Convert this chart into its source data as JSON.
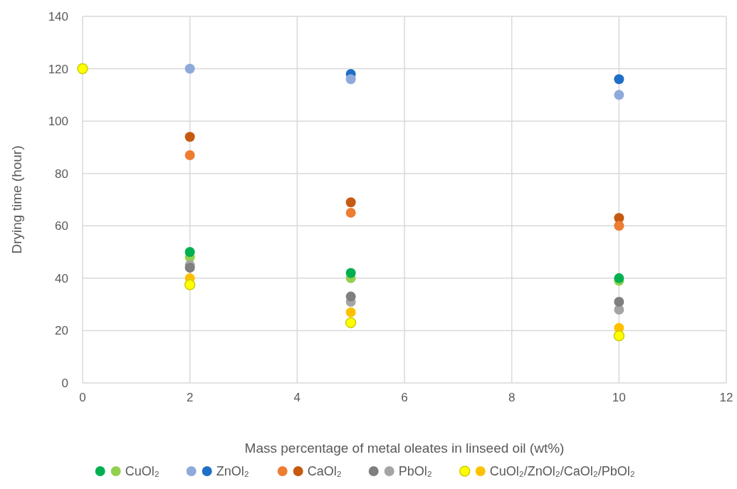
{
  "chart_data": {
    "type": "scatter",
    "xlabel": "Mass percentage of metal oleates in linseed oil (wt%)",
    "ylabel": "Drying time (hour)",
    "x": [
      0,
      2,
      5,
      10
    ],
    "xlim": [
      0,
      12
    ],
    "xticks": [
      0,
      2,
      4,
      6,
      8,
      10,
      12
    ],
    "ylim": [
      0,
      140
    ],
    "yticks": [
      0,
      20,
      40,
      60,
      80,
      100,
      120,
      140
    ],
    "grid": true,
    "legend": "bottom",
    "marker": "circle",
    "series": [
      {
        "color": "#00b050",
        "values": [
          null,
          50,
          42,
          40
        ]
      },
      {
        "name": "CuOl₂",
        "color": "#92d050",
        "values": [
          null,
          48,
          40,
          39
        ]
      },
      {
        "color": "#8eaadb",
        "values": [
          null,
          120,
          116,
          110
        ]
      },
      {
        "name": "ZnOl₂",
        "color": "#1f6fc6",
        "values": [
          null,
          null,
          118,
          116
        ]
      },
      {
        "color": "#ed7d31",
        "values": [
          null,
          87,
          65,
          60
        ]
      },
      {
        "name": "CaOl₂",
        "color": "#c55a11",
        "values": [
          null,
          94,
          69,
          63
        ]
      },
      {
        "color": "#7f7f7f",
        "values": [
          null,
          44,
          33,
          31
        ]
      },
      {
        "name": "PbOl₂",
        "color": "#a5a5a5",
        "values": [
          null,
          45,
          31,
          28
        ]
      },
      {
        "color": "#ffff00",
        "values": [
          120,
          37.5,
          23,
          18
        ]
      },
      {
        "name": "CuOl₂/ZnOl₂/CaOl₂/PbOl₂",
        "color": "#ffc000",
        "values": [
          null,
          40,
          27,
          21
        ]
      }
    ]
  }
}
